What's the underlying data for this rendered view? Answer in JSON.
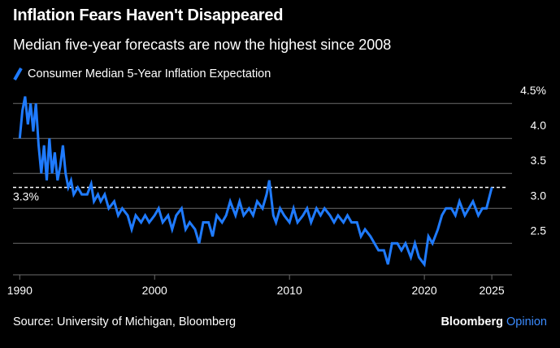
{
  "header": {
    "title": "Inflation Fears Haven't Disappeared",
    "subtitle": "Median five-year forecasts are now the highest since 2008"
  },
  "footer": {
    "source": "Source: University of Michigan, Bloomberg",
    "brand": "Bloomberg",
    "brand_suffix": "Opinion"
  },
  "colors": {
    "background": "#000000",
    "series": "#1f7bff",
    "grid": "#6b6b6b",
    "reference": "#ffffff",
    "brand_accent": "#3b8bff"
  },
  "chart_data": {
    "type": "line",
    "title": "Inflation Fears Haven't Disappeared",
    "subtitle": "Median five-year forecasts are now the highest since 2008",
    "xlabel": "",
    "ylabel": "",
    "xlim": [
      1989.5,
      2026.5
    ],
    "ylim": [
      2.05,
      4.7
    ],
    "x_ticks": [
      1990,
      2000,
      2010,
      2020,
      2025
    ],
    "x_tick_labels": [
      "1990",
      "2000",
      "2010",
      "2020",
      "2025"
    ],
    "y_ticks": [
      2.5,
      3.0,
      3.5,
      4.0,
      4.5
    ],
    "y_tick_labels": [
      "2.5",
      "3.0",
      "3.5",
      "4.0",
      "4.5%"
    ],
    "grid": "horizontal",
    "legend": "top-left",
    "reference_line": {
      "value": 3.3,
      "label": "3.3%",
      "style": "dashed"
    },
    "series": [
      {
        "name": "Consumer Median 5-Year Inflation Expectation",
        "points": [
          [
            1990.0,
            4.0
          ],
          [
            1990.2,
            4.4
          ],
          [
            1990.4,
            4.6
          ],
          [
            1990.6,
            4.2
          ],
          [
            1990.8,
            4.5
          ],
          [
            1991.0,
            4.1
          ],
          [
            1991.2,
            4.5
          ],
          [
            1991.4,
            3.9
          ],
          [
            1991.6,
            3.5
          ],
          [
            1991.8,
            3.9
          ],
          [
            1992.0,
            3.4
          ],
          [
            1992.2,
            4.0
          ],
          [
            1992.4,
            3.5
          ],
          [
            1992.6,
            3.8
          ],
          [
            1992.8,
            3.4
          ],
          [
            1993.0,
            3.6
          ],
          [
            1993.2,
            3.9
          ],
          [
            1993.4,
            3.5
          ],
          [
            1993.6,
            3.3
          ],
          [
            1993.8,
            3.4
          ],
          [
            1994.0,
            3.2
          ],
          [
            1994.3,
            3.3
          ],
          [
            1994.6,
            3.2
          ],
          [
            1995.0,
            3.2
          ],
          [
            1995.3,
            3.35
          ],
          [
            1995.5,
            3.1
          ],
          [
            1995.8,
            3.2
          ],
          [
            1996.0,
            3.1
          ],
          [
            1996.3,
            3.2
          ],
          [
            1996.6,
            3.0
          ],
          [
            1997.0,
            3.1
          ],
          [
            1997.3,
            2.9
          ],
          [
            1997.6,
            3.0
          ],
          [
            1998.0,
            2.9
          ],
          [
            1998.3,
            2.7
          ],
          [
            1998.6,
            2.9
          ],
          [
            1999.0,
            2.8
          ],
          [
            1999.3,
            2.9
          ],
          [
            1999.6,
            2.8
          ],
          [
            2000.0,
            2.9
          ],
          [
            2000.3,
            3.0
          ],
          [
            2000.6,
            2.8
          ],
          [
            2001.0,
            2.9
          ],
          [
            2001.3,
            2.7
          ],
          [
            2001.6,
            2.9
          ],
          [
            2002.0,
            3.0
          ],
          [
            2002.3,
            2.7
          ],
          [
            2002.6,
            2.8
          ],
          [
            2003.0,
            2.7
          ],
          [
            2003.3,
            2.5
          ],
          [
            2003.6,
            2.8
          ],
          [
            2004.0,
            2.8
          ],
          [
            2004.3,
            2.6
          ],
          [
            2004.6,
            2.9
          ],
          [
            2005.0,
            2.8
          ],
          [
            2005.3,
            2.9
          ],
          [
            2005.6,
            3.1
          ],
          [
            2006.0,
            2.9
          ],
          [
            2006.3,
            3.1
          ],
          [
            2006.6,
            2.9
          ],
          [
            2007.0,
            3.0
          ],
          [
            2007.3,
            2.9
          ],
          [
            2007.6,
            3.1
          ],
          [
            2008.0,
            3.0
          ],
          [
            2008.3,
            3.2
          ],
          [
            2008.5,
            3.4
          ],
          [
            2008.8,
            2.9
          ],
          [
            2009.0,
            2.8
          ],
          [
            2009.3,
            3.0
          ],
          [
            2009.6,
            2.9
          ],
          [
            2010.0,
            2.8
          ],
          [
            2010.3,
            3.0
          ],
          [
            2010.6,
            2.8
          ],
          [
            2011.0,
            2.9
          ],
          [
            2011.3,
            3.0
          ],
          [
            2011.6,
            2.8
          ],
          [
            2012.0,
            3.0
          ],
          [
            2012.3,
            2.9
          ],
          [
            2012.6,
            3.0
          ],
          [
            2013.0,
            2.9
          ],
          [
            2013.3,
            2.8
          ],
          [
            2013.6,
            2.9
          ],
          [
            2014.0,
            2.8
          ],
          [
            2014.3,
            2.9
          ],
          [
            2014.6,
            2.8
          ],
          [
            2015.0,
            2.8
          ],
          [
            2015.3,
            2.6
          ],
          [
            2015.6,
            2.7
          ],
          [
            2016.0,
            2.6
          ],
          [
            2016.3,
            2.5
          ],
          [
            2016.6,
            2.4
          ],
          [
            2017.0,
            2.4
          ],
          [
            2017.3,
            2.2
          ],
          [
            2017.6,
            2.5
          ],
          [
            2018.0,
            2.5
          ],
          [
            2018.3,
            2.4
          ],
          [
            2018.6,
            2.5
          ],
          [
            2019.0,
            2.3
          ],
          [
            2019.3,
            2.5
          ],
          [
            2019.6,
            2.3
          ],
          [
            2020.0,
            2.2
          ],
          [
            2020.3,
            2.6
          ],
          [
            2020.6,
            2.5
          ],
          [
            2021.0,
            2.7
          ],
          [
            2021.3,
            2.9
          ],
          [
            2021.6,
            3.0
          ],
          [
            2022.0,
            3.0
          ],
          [
            2022.3,
            2.9
          ],
          [
            2022.6,
            3.1
          ],
          [
            2023.0,
            2.9
          ],
          [
            2023.3,
            3.0
          ],
          [
            2023.6,
            3.1
          ],
          [
            2024.0,
            2.9
          ],
          [
            2024.3,
            3.0
          ],
          [
            2024.6,
            3.0
          ],
          [
            2025.0,
            3.3
          ]
        ]
      }
    ]
  }
}
